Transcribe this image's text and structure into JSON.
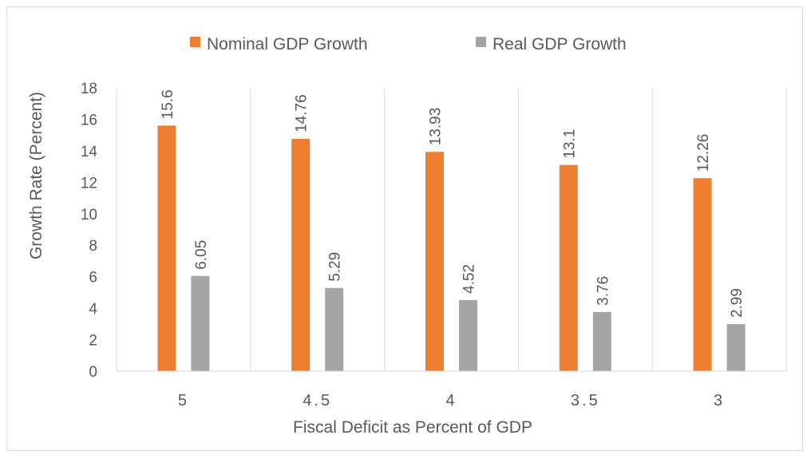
{
  "chart_data": {
    "type": "bar",
    "title": "",
    "xlabel": "Fiscal Deficit as Percent of GDP",
    "ylabel": "Growth Rate (Percent)",
    "categories": [
      "5",
      "4.5",
      "4",
      "3.5",
      "3"
    ],
    "series": [
      {
        "name": "Nominal GDP Growth",
        "values": [
          15.6,
          14.76,
          13.93,
          13.1,
          12.26
        ],
        "labels": [
          "15.6",
          "14.76",
          "13.93",
          "13.1",
          "12.26"
        ],
        "color": "#ed7d31"
      },
      {
        "name": "Real GDP Growth",
        "values": [
          6.05,
          5.29,
          4.52,
          3.76,
          2.99
        ],
        "labels": [
          "6.05",
          "5.29",
          "4.52",
          "3.76",
          "2.99"
        ],
        "color": "#a5a5a5"
      }
    ],
    "ylim": [
      0,
      18
    ],
    "yticks": [
      "0",
      "2",
      "4",
      "6",
      "8",
      "10",
      "12",
      "14",
      "16",
      "18"
    ],
    "grid": "vertical category separators",
    "legend_position": "top",
    "colors": {
      "axis": "#d9d9d9",
      "text": "#595959"
    }
  }
}
